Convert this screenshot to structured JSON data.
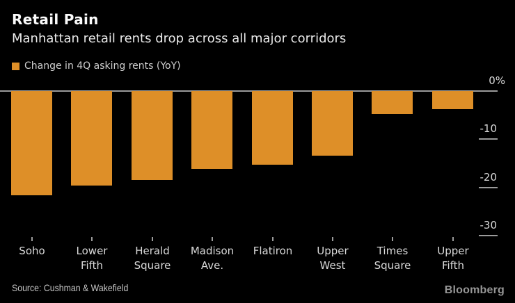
{
  "header": {
    "title": "Retail Pain",
    "subtitle": "Manhattan retail rents drop across all major corridors"
  },
  "legend": {
    "label": "Change in 4Q asking rents (YoY)",
    "swatch_color": "#DE8F28"
  },
  "chart_data": {
    "type": "bar",
    "title": "Retail Pain",
    "subtitle": "Manhattan retail rents drop across all major corridors",
    "series_label": "Change in 4Q asking rents (YoY)",
    "categories": [
      "Soho",
      "Lower Fifth",
      "Herald Square",
      "Madison Ave.",
      "Flatiron",
      "Upper West",
      "Times Square",
      "Upper Fifth"
    ],
    "values": [
      -21.6,
      -19.6,
      -18.4,
      -16.2,
      -15.3,
      -13.4,
      -4.8,
      -3.8
    ],
    "unit": "%",
    "xlabel": "",
    "ylabel": "",
    "ylim": [
      -30,
      0
    ],
    "y_ticks": [
      {
        "label": "0%",
        "value": 0
      },
      {
        "label": "-10",
        "value": -10
      },
      {
        "label": "-20",
        "value": -20
      },
      {
        "label": "-30",
        "value": -30
      }
    ],
    "bar_color": "#DE8F28",
    "axis_color": "#9B9B9B",
    "tick_label_color": "#D9D9D9",
    "grid": "off",
    "legend_position": "top-left",
    "background_color": "#000000"
  },
  "footer": {
    "source": "Source: Cushman & Wakefield",
    "brand": "Bloomberg"
  }
}
